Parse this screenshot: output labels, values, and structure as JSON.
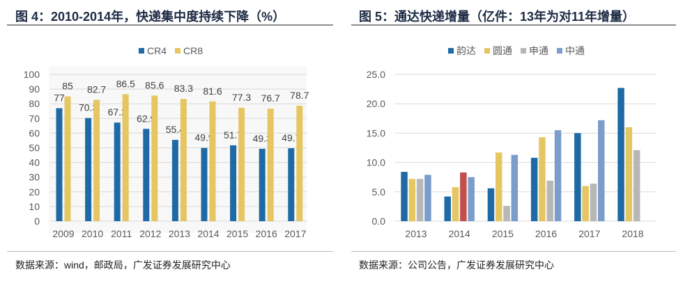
{
  "left": {
    "title": "图 4：2010-2014年，快递集中度持续下降（%）",
    "footer": "数据来源：wind，邮政局，广发证券发展研究中心"
  },
  "right": {
    "title": "图 5：通达快递增量（亿件：13年为对11年增量）",
    "footer": "数据来源：公司公告，广发证券发展研究中心"
  },
  "chart_data": [
    {
      "type": "bar",
      "title": "图 4：2010-2014年，快递集中度持续下降（%）",
      "categories": [
        "2009",
        "2010",
        "2011",
        "2012",
        "2013",
        "2014",
        "2015",
        "2016",
        "2017"
      ],
      "series": [
        {
          "name": "CR4",
          "color": "#1f6aa5",
          "values": [
            77,
            70.3,
            67.2,
            62.9,
            55.4,
            49.9,
            51.7,
            49.3,
            49.7
          ],
          "labels": [
            "77",
            "70.3",
            "67.2",
            "62.9",
            "55.4",
            "49.9",
            "51.7",
            "49.3",
            "49.7"
          ]
        },
        {
          "name": "CR8",
          "color": "#e5c663",
          "values": [
            85,
            82.7,
            86.5,
            85.6,
            83.3,
            81.6,
            77.3,
            76.7,
            78.7
          ],
          "labels": [
            "85",
            "82.7",
            "86.5",
            "85.6",
            "83.3",
            "81.6",
            "77.3",
            "76.7",
            "78.7"
          ]
        }
      ],
      "ylim": [
        0,
        100
      ],
      "yticks": [
        "0",
        "10",
        "20",
        "30",
        "40",
        "50",
        "60",
        "70",
        "80",
        "90",
        "100"
      ],
      "grid": true,
      "legend": "top"
    },
    {
      "type": "bar",
      "title": "图 5：通达快递增量（亿件：13年为对11年增量）",
      "categories": [
        "2013",
        "2014",
        "2015",
        "2016",
        "2017",
        "2018"
      ],
      "series": [
        {
          "name": "韵达",
          "color": "#1f6aa5",
          "values": [
            8.4,
            4.2,
            5.6,
            10.8,
            15.0,
            22.7
          ]
        },
        {
          "name": "圆通",
          "color": "#e5c663",
          "values": [
            7.2,
            5.8,
            11.7,
            14.3,
            6.0,
            16.0
          ]
        },
        {
          "name": "申通",
          "color": "#b7b7b7",
          "values": [
            7.2,
            8.3,
            2.6,
            6.9,
            6.4,
            12.1
          ],
          "point_colors": {
            "1": "#c0504d"
          }
        },
        {
          "name": "中通",
          "color": "#7b9dca",
          "values": [
            7.9,
            7.5,
            11.3,
            15.5,
            17.2,
            null
          ]
        }
      ],
      "ylim": [
        0,
        25
      ],
      "yticks": [
        "0.0",
        "5.0",
        "10.0",
        "15.0",
        "20.0",
        "25.0"
      ],
      "grid": true,
      "legend": "top"
    }
  ]
}
